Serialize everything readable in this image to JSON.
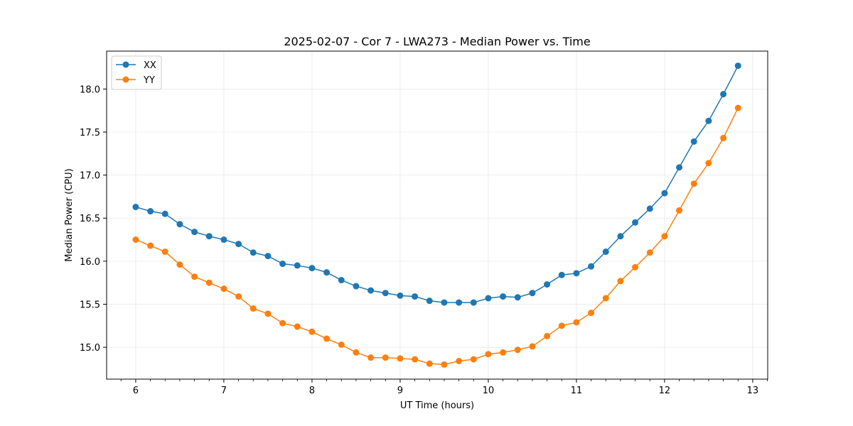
{
  "chart_data": {
    "type": "line",
    "title": "2025-02-07 - Cor 7 - LWA273 - Median Power vs. Time",
    "xlabel": "UT Time (hours)",
    "ylabel": "Median Power (CPU)",
    "xlim": [
      5.67,
      13.17
    ],
    "ylim": [
      14.63,
      18.44
    ],
    "xticks": [
      6,
      7,
      8,
      9,
      10,
      11,
      12,
      13
    ],
    "xtick_labels": [
      "6",
      "7",
      "8",
      "9",
      "10",
      "11",
      "12",
      "13"
    ],
    "yticks": [
      15.0,
      15.5,
      16.0,
      16.5,
      17.0,
      17.5,
      18.0
    ],
    "ytick_labels": [
      "15.0",
      "15.5",
      "16.0",
      "16.5",
      "17.0",
      "17.5",
      "18.0"
    ],
    "grid": true,
    "legend_position": "top-left",
    "x": [
      6.0,
      6.1667,
      6.3333,
      6.5,
      6.6667,
      6.8333,
      7.0,
      7.1667,
      7.3333,
      7.5,
      7.6667,
      7.8333,
      8.0,
      8.1667,
      8.3333,
      8.5,
      8.6667,
      8.8333,
      9.0,
      9.1667,
      9.3333,
      9.5,
      9.6667,
      9.8333,
      10.0,
      10.1667,
      10.3333,
      10.5,
      10.6667,
      10.8333,
      11.0,
      11.1667,
      11.3333,
      11.5,
      11.6667,
      11.8333,
      12.0,
      12.1667,
      12.3333,
      12.5,
      12.6667,
      12.8333
    ],
    "series": [
      {
        "name": "XX",
        "color": "#1f77b4",
        "values": [
          16.63,
          16.58,
          16.55,
          16.43,
          16.34,
          16.29,
          16.25,
          16.2,
          16.1,
          16.06,
          15.97,
          15.95,
          15.92,
          15.87,
          15.78,
          15.71,
          15.66,
          15.63,
          15.6,
          15.59,
          15.54,
          15.52,
          15.52,
          15.52,
          15.57,
          15.59,
          15.58,
          15.63,
          15.73,
          15.84,
          15.86,
          15.94,
          16.11,
          16.29,
          16.45,
          16.61,
          16.79,
          17.09,
          17.39,
          17.63,
          17.94,
          18.27
        ]
      },
      {
        "name": "YY",
        "color": "#ff7f0e",
        "values": [
          16.25,
          16.18,
          16.11,
          15.96,
          15.82,
          15.75,
          15.68,
          15.59,
          15.45,
          15.39,
          15.28,
          15.24,
          15.18,
          15.1,
          15.03,
          14.94,
          14.88,
          14.88,
          14.87,
          14.86,
          14.81,
          14.8,
          14.84,
          14.86,
          14.92,
          14.94,
          14.97,
          15.01,
          15.13,
          15.25,
          15.29,
          15.4,
          15.57,
          15.77,
          15.93,
          16.1,
          16.29,
          16.59,
          16.9,
          17.14,
          17.43,
          17.78
        ]
      }
    ]
  }
}
